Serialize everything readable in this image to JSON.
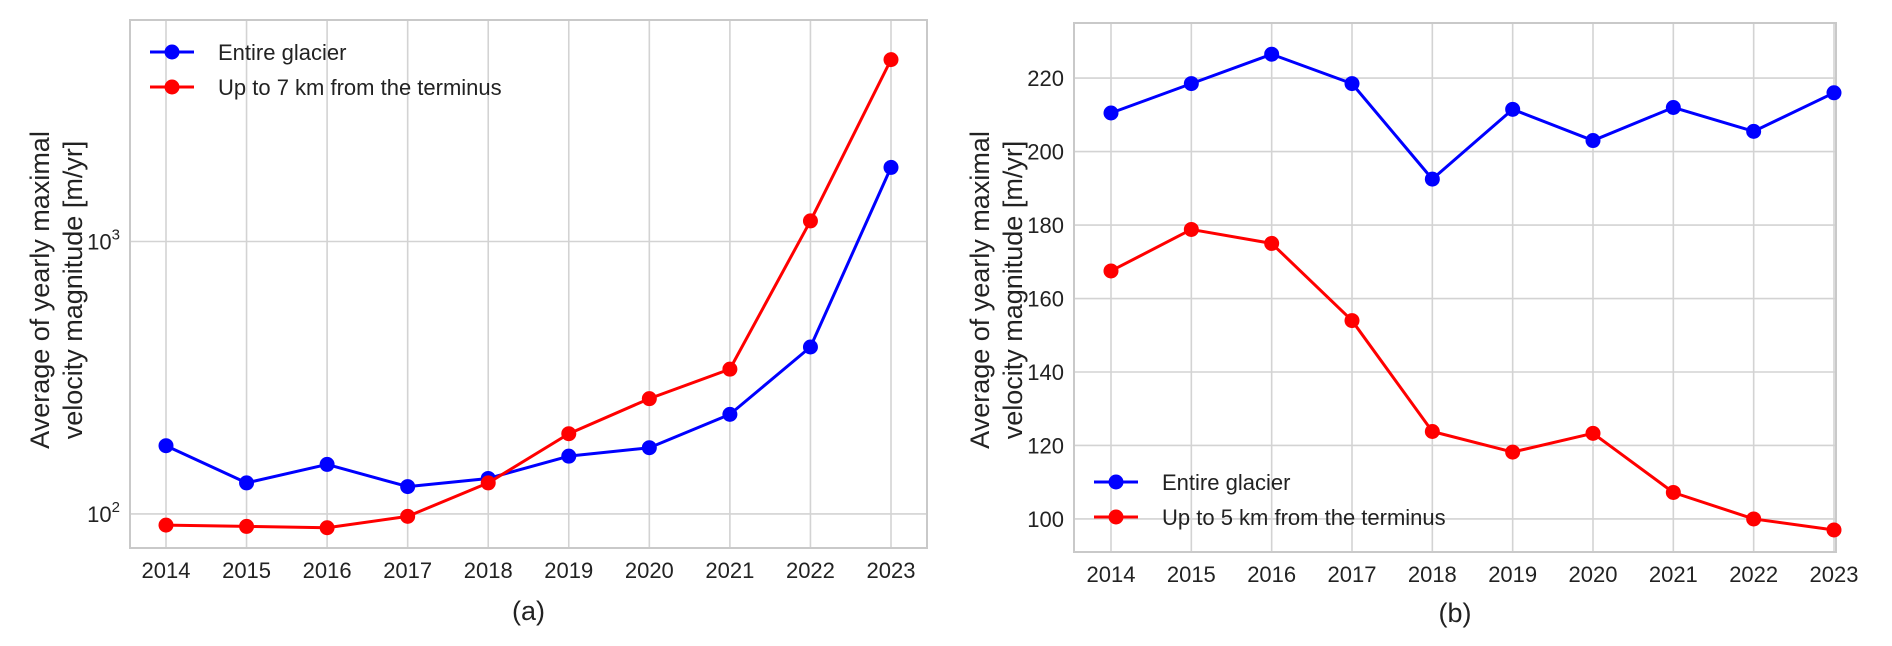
{
  "chart_data": [
    {
      "type": "line",
      "panel_label": "(a)",
      "ylabel_lines": [
        "Average of yearly maximal",
        "velocity magnitude [m/yr]"
      ],
      "yscale": "log",
      "ylim": [
        75,
        6500
      ],
      "y_ticks": [
        {
          "value": 100,
          "base": "10",
          "exp": "2"
        },
        {
          "value": 1000,
          "base": "10",
          "exp": "3"
        }
      ],
      "categories": [
        "2014",
        "2015",
        "2016",
        "2017",
        "2018",
        "2019",
        "2020",
        "2021",
        "2022",
        "2023"
      ],
      "grid": true,
      "legend_position": "top-left",
      "series": [
        {
          "name": "Entire glacier",
          "color": "#0000ff",
          "values": [
            178,
            130,
            152,
            126,
            135,
            163,
            175,
            232,
            410,
            1870
          ]
        },
        {
          "name": "Up to 7 km from the terminus",
          "color": "#ff0000",
          "values": [
            91,
            90,
            89,
            98,
            130,
            197,
            265,
            340,
            1190,
            4650
          ]
        }
      ]
    },
    {
      "type": "line",
      "panel_label": "(b)",
      "ylabel_lines": [
        "Average of yearly maximal",
        "velocity magnitude [m/yr]"
      ],
      "yscale": "linear",
      "ylim": [
        91,
        235
      ],
      "y_ticks": [
        {
          "value": 100,
          "label": "100"
        },
        {
          "value": 120,
          "label": "120"
        },
        {
          "value": 140,
          "label": "140"
        },
        {
          "value": 160,
          "label": "160"
        },
        {
          "value": 180,
          "label": "180"
        },
        {
          "value": 200,
          "label": "200"
        },
        {
          "value": 220,
          "label": "220"
        }
      ],
      "categories": [
        "2014",
        "2015",
        "2016",
        "2017",
        "2018",
        "2019",
        "2020",
        "2021",
        "2022",
        "2023"
      ],
      "grid": true,
      "legend_position": "bottom-left",
      "series": [
        {
          "name": "Entire glacier",
          "color": "#0000ff",
          "values": [
            210.5,
            218.5,
            226.5,
            218.5,
            192.5,
            211.5,
            203,
            212,
            205.5,
            216
          ]
        },
        {
          "name": "Up to 5 km from the terminus",
          "color": "#ff0000",
          "values": [
            167.5,
            178.8,
            175,
            154,
            123.8,
            118.2,
            123.3,
            107.2,
            100,
            97
          ]
        }
      ]
    }
  ]
}
